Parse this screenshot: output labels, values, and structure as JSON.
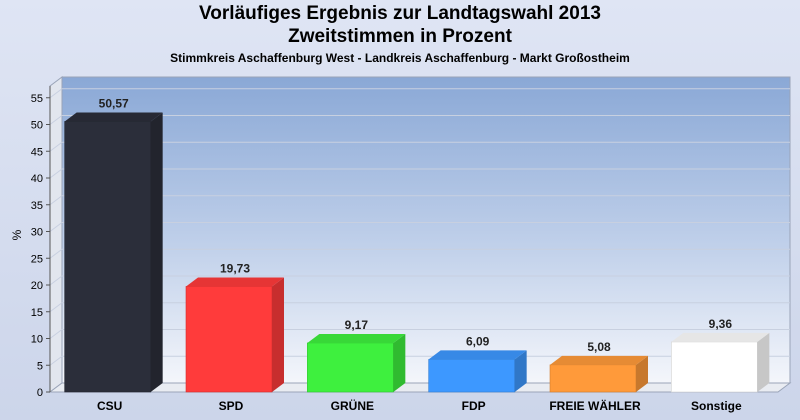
{
  "chart_data": {
    "type": "bar",
    "title": "Vorläufiges Ergebnis zur Landtagswahl 2013",
    "title2": "Zweitstimmen in Prozent",
    "subtitle": "Stimmkreis Aschaffenburg West - Landkreis Aschaffenburg - Markt Großostheim",
    "ylabel": "%",
    "ylim": [
      0,
      58
    ],
    "yticks": [
      "0",
      "5",
      "10",
      "15",
      "20",
      "25",
      "30",
      "35",
      "40",
      "45",
      "50",
      "55"
    ],
    "categories": [
      "CSU",
      "SPD",
      "GRÜNE",
      "FDP",
      "FREIE WÄHLER",
      "Sonstige"
    ],
    "values": [
      50.57,
      19.73,
      9.17,
      6.09,
      5.08,
      9.36
    ],
    "value_labels": [
      "50,57",
      "19,73",
      "9,17",
      "6,09",
      "5,08",
      "9,36"
    ],
    "colors": [
      "#2b2e3a",
      "#ff3b3b",
      "#3ef03e",
      "#3d98ff",
      "#ff9a3a",
      "#ffffff"
    ],
    "grid": true,
    "legend": "none"
  }
}
